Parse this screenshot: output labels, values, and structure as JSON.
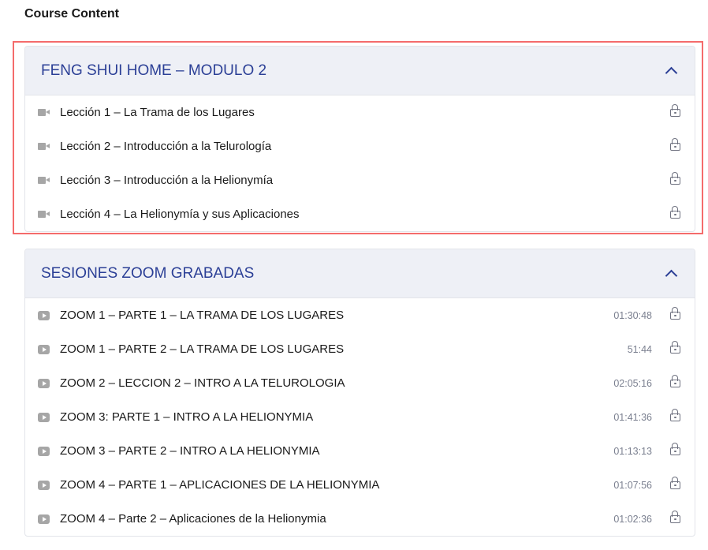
{
  "title": "Course Content",
  "colors": {
    "accent": "#2b3f96",
    "highlight": "#f46b6b",
    "header_bg": "#eef0f6"
  },
  "sections": [
    {
      "title": "FENG SHUI HOME – MODULO 2",
      "icon": "video-camera-icon",
      "items": [
        {
          "label": "Lección 1 – La Trama de los Lugares"
        },
        {
          "label": "Lección 2 – Introducción a la Telurología"
        },
        {
          "label": "Lección 3 – Introducción a la Helionymía"
        },
        {
          "label": "Lección 4 – La Helionymía y sus Aplicaciones"
        }
      ]
    },
    {
      "title": "SESIONES ZOOM GRABADAS",
      "icon": "play-icon",
      "items": [
        {
          "label": "ZOOM 1 – PARTE 1 – LA TRAMA DE LOS LUGARES",
          "duration": "01:30:48"
        },
        {
          "label": "ZOOM 1 – PARTE 2 – LA TRAMA DE LOS LUGARES",
          "duration": "51:44"
        },
        {
          "label": "ZOOM 2 – LECCION 2 – INTRO A LA TELUROLOGIA",
          "duration": "02:05:16"
        },
        {
          "label": "ZOOM 3: PARTE 1 – INTRO A LA HELIONYMIA",
          "duration": "01:41:36"
        },
        {
          "label": "ZOOM 3 – PARTE 2 – INTRO A LA HELIONYMIA",
          "duration": "01:13:13"
        },
        {
          "label": "ZOOM 4 – PARTE 1 – APLICACIONES DE LA HELIONYMIA",
          "duration": "01:07:56"
        },
        {
          "label": "ZOOM 4 – Parte 2 – Aplicaciones de la Helionymia",
          "duration": "01:02:36"
        }
      ]
    }
  ]
}
